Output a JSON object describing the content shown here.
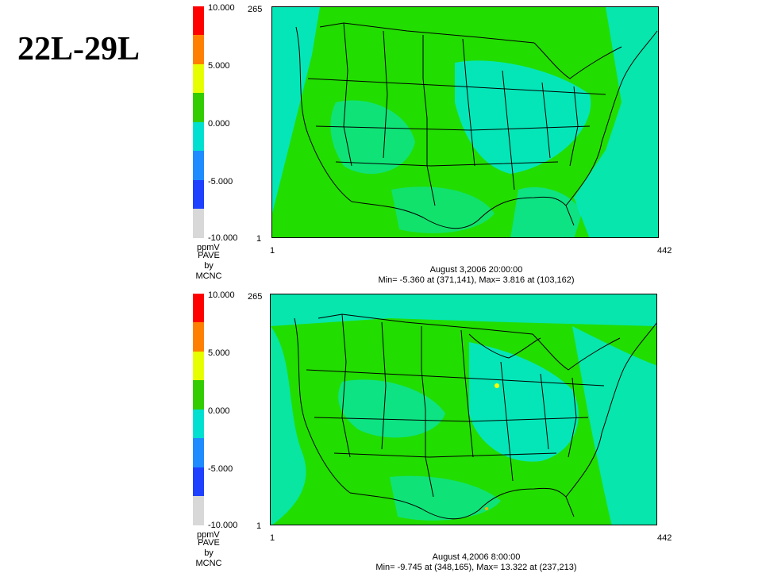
{
  "slide": {
    "title": "22L-29L"
  },
  "legend": {
    "labels": [
      "10.000",
      "5.000",
      "0.000",
      "-5.000",
      "-10.000"
    ],
    "unit": "ppmV",
    "credit": [
      "PAVE",
      "by",
      "MCNC"
    ],
    "colors": [
      "#ff0000",
      "#ff8000",
      "#ffff00",
      "#33cc00",
      "#00e0d0",
      "#1e8cff",
      "#1e40ff",
      "#d8d8d8"
    ]
  },
  "colors": {
    "land_green": "#33dd00",
    "cyan": "#00eedd",
    "border": "#000000"
  },
  "panels": [
    {
      "axis": {
        "y_top": "265",
        "y_bottom": "1",
        "x_left": "1",
        "x_right": "442"
      },
      "time": "August 3,2006 20:00:00",
      "stats": "Min=  -5.360 at (371,141), Max=  3.816 at (103,162)"
    },
    {
      "axis": {
        "y_top": "265",
        "y_bottom": "1",
        "x_left": "1",
        "x_right": "442"
      },
      "time": "August 4,2006 8:00:00",
      "stats": "Min=  -9.745 at (348,165), Max=  13.322 at (237,213)"
    }
  ]
}
